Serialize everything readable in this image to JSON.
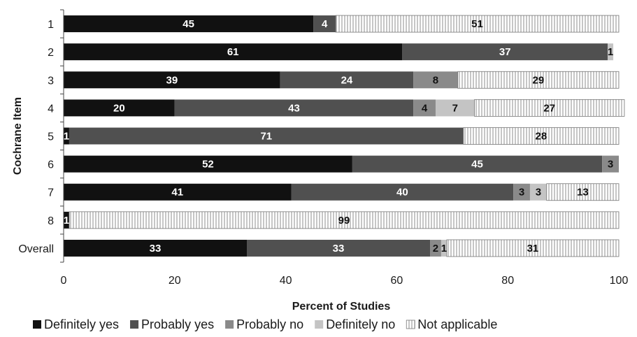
{
  "chart_data": {
    "type": "bar",
    "orientation": "horizontal",
    "stacked": true,
    "title": "",
    "xlabel": "Percent of Studies",
    "ylabel": "Cochrane Item",
    "xlim": [
      0,
      100
    ],
    "x_ticks": [
      "0",
      "20",
      "40",
      "60",
      "80",
      "100"
    ],
    "grid": false,
    "legend_position": "bottom",
    "categories": [
      "1",
      "2",
      "3",
      "4",
      "5",
      "6",
      "7",
      "8",
      "Overall"
    ],
    "series": [
      {
        "name": "Definitely yes",
        "color": "#111111",
        "pattern": "solid",
        "values": [
          45,
          61,
          39,
          20,
          1,
          52,
          41,
          1,
          33
        ],
        "labels": [
          "45",
          "61",
          "39",
          "20",
          "1",
          "52",
          "41",
          "1",
          "33"
        ]
      },
      {
        "name": "Probably yes",
        "color": "#505050",
        "pattern": "solid",
        "values": [
          4,
          37,
          24,
          43,
          71,
          45,
          40,
          0,
          33
        ],
        "labels": [
          "4",
          "37",
          "24",
          "43",
          "71",
          "45",
          "40",
          "",
          "33"
        ]
      },
      {
        "name": "Probably no",
        "color": "#8a8a8a",
        "pattern": "solid",
        "values": [
          0,
          0,
          8,
          4,
          0,
          3,
          3,
          0,
          2
        ],
        "labels": [
          "",
          "",
          "8",
          "4",
          "",
          "3",
          "3",
          "",
          "2"
        ]
      },
      {
        "name": "Definitely no",
        "color": "#c4c4c4",
        "pattern": "solid",
        "values": [
          0,
          1,
          0,
          7,
          0,
          0,
          3,
          0,
          1
        ],
        "labels": [
          "",
          "1",
          "",
          "7",
          "",
          "",
          "3",
          "",
          "1"
        ]
      },
      {
        "name": "Not applicable",
        "color": "#ffffff",
        "pattern": "vertical-lines",
        "values": [
          51,
          0,
          29,
          27,
          28,
          0,
          13,
          99,
          31
        ],
        "labels": [
          "51",
          "",
          "29",
          "27",
          "28",
          "",
          "13",
          "99",
          "31"
        ]
      }
    ]
  }
}
